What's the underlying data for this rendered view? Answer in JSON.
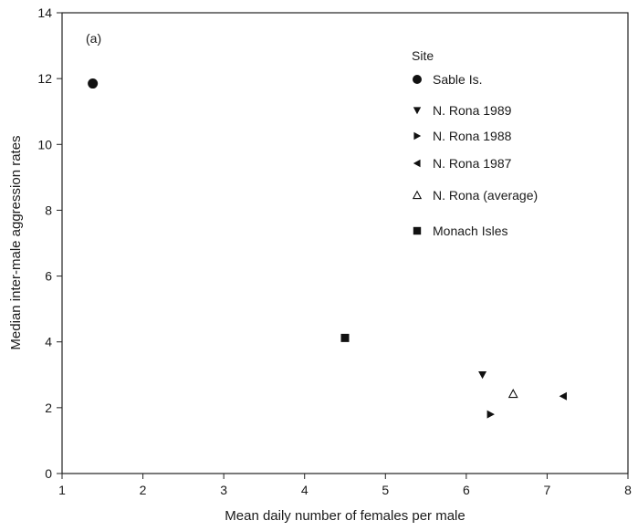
{
  "chart_data": {
    "type": "scatter",
    "panel_label": "(a)",
    "xlabel": "Mean daily number of females per male",
    "ylabel": "Median inter-male aggression rates",
    "xlim": [
      1,
      8
    ],
    "ylim": [
      0,
      14
    ],
    "x_ticks": [
      "1",
      "2",
      "3",
      "4",
      "5",
      "6",
      "7",
      "8"
    ],
    "y_ticks": [
      "0",
      "2",
      "4",
      "6",
      "8",
      "10",
      "12",
      "14"
    ],
    "grid": false,
    "legend_title": "Site",
    "legend_position": "top-right",
    "series": [
      {
        "name": "Sable Is.",
        "marker": "circle",
        "color": "#111111",
        "points": [
          {
            "x": 1.38,
            "y": 11.85
          }
        ]
      },
      {
        "name": "N. Rona 1989",
        "marker": "triangle-down",
        "color": "#111111",
        "points": [
          {
            "x": 6.2,
            "y": 3.0
          }
        ]
      },
      {
        "name": "N. Rona 1988",
        "marker": "triangle-right",
        "color": "#111111",
        "points": [
          {
            "x": 6.3,
            "y": 1.8
          }
        ]
      },
      {
        "name": "N. Rona 1987",
        "marker": "triangle-left",
        "color": "#111111",
        "points": [
          {
            "x": 7.2,
            "y": 2.35
          }
        ]
      },
      {
        "name": "N. Rona (average)",
        "marker": "triangle-up-open",
        "color": "#111111",
        "points": [
          {
            "x": 6.58,
            "y": 2.42
          }
        ]
      },
      {
        "name": "Monach Isles",
        "marker": "square",
        "color": "#111111",
        "points": [
          {
            "x": 4.5,
            "y": 4.12
          }
        ]
      }
    ]
  }
}
